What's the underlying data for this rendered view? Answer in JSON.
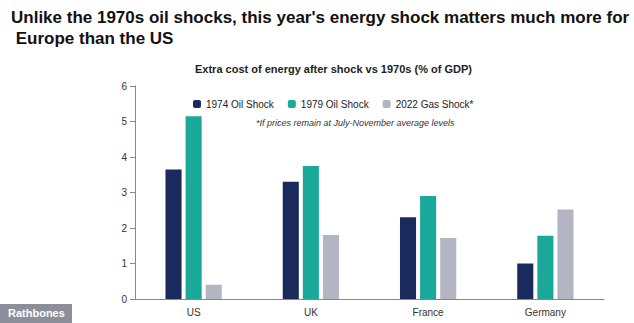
{
  "chart_data": {
    "type": "bar",
    "title": "Unlike the 1970s oil shocks, this year's energy shock matters much more for Europe than the US",
    "subtitle": "Extra cost of energy after shock vs 1970s (% of GDP)",
    "annotations": [
      "*If prices remain at July-November average levels"
    ],
    "source": "Rathbones",
    "categories": [
      "US",
      "UK",
      "France",
      "Germany"
    ],
    "series": [
      {
        "name": "1974 Oil Shock",
        "color": "#1b2a5c",
        "values": [
          3.65,
          3.3,
          2.3,
          1.0
        ]
      },
      {
        "name": "1979 Oil Shock",
        "color": "#1aa89a",
        "values": [
          5.15,
          3.75,
          2.9,
          1.78
        ]
      },
      {
        "name": "2022 Gas Shock*",
        "color": "#b3b5c2",
        "values": [
          0.4,
          1.8,
          1.72,
          2.52
        ]
      }
    ],
    "ylim": [
      0,
      6
    ],
    "yticks": [
      0,
      1,
      2,
      3,
      4,
      5,
      6
    ],
    "grid": false,
    "legend": "top"
  }
}
